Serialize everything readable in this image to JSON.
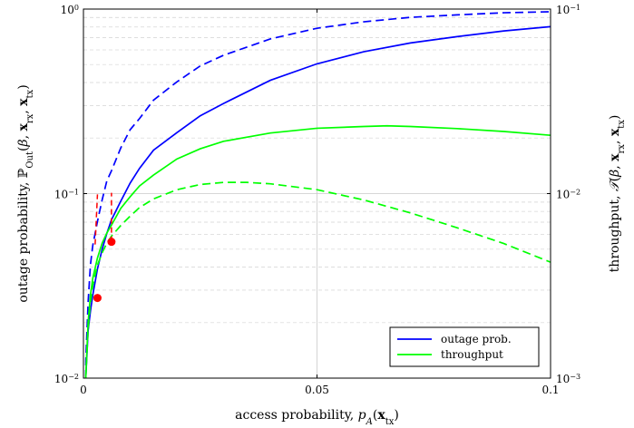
{
  "chart_data": {
    "type": "line",
    "xlabel": "access probability, p_A(x_tx)",
    "ylabel_left": "outage probability, ℙ_Out(β, x_rx, x_tx)",
    "ylabel_right": "throughput, 𝒯(β, x_rx, x_tx)",
    "xlim": [
      0,
      0.1
    ],
    "ylim_left": [
      0.01,
      1
    ],
    "ylim_right": [
      0.001,
      0.1
    ],
    "yscale": "log",
    "x_ticks": [
      {
        "value": 0,
        "label": "0"
      },
      {
        "value": 0.05,
        "label": "0.05"
      },
      {
        "value": 0.1,
        "label": "0.1"
      }
    ],
    "y_ticks_left": [
      {
        "value": 0.01,
        "label": "10",
        "exp": "−2"
      },
      {
        "value": 0.1,
        "label": "10",
        "exp": "−1"
      },
      {
        "value": 1,
        "label": "10",
        "exp": "0"
      }
    ],
    "y_ticks_right": [
      {
        "value": 0.001,
        "label": "10",
        "exp": "−3"
      },
      {
        "value": 0.01,
        "label": "10",
        "exp": "−2"
      },
      {
        "value": 0.1,
        "label": "10",
        "exp": "−1"
      }
    ],
    "grid": "y-minor dashed, x at 0.05",
    "legend": {
      "placement": "bottom-right",
      "entries": [
        {
          "label": "outage prob.",
          "color": "#0000ff"
        },
        {
          "label": "throughput",
          "color": "#00ff00"
        }
      ]
    },
    "series": [
      {
        "axis": "left",
        "color": "#0000ff",
        "dash": "solid",
        "x": [
          0.0005,
          0.001,
          0.0015,
          0.002,
          0.003,
          0.004,
          0.005,
          0.006,
          0.008,
          0.01,
          0.012,
          0.015,
          0.02,
          0.025,
          0.03,
          0.04,
          0.05,
          0.06,
          0.07,
          0.08,
          0.09,
          0.1
        ],
        "y": [
          0.0101,
          0.0181,
          0.0231,
          0.0282,
          0.0391,
          0.0499,
          0.0608,
          0.0721,
          0.0911,
          0.114,
          0.137,
          0.172,
          0.214,
          0.264,
          0.308,
          0.411,
          0.505,
          0.587,
          0.655,
          0.709,
          0.761,
          0.803
        ]
      },
      {
        "axis": "left",
        "color": "#0000ff",
        "dash": "dashed",
        "x": [
          0.0005,
          0.001,
          0.0015,
          0.002,
          0.003,
          0.004,
          0.005,
          0.006,
          0.008,
          0.01,
          0.012,
          0.015,
          0.02,
          0.025,
          0.03,
          0.04,
          0.05,
          0.06,
          0.07,
          0.08,
          0.09,
          0.1
        ],
        "y": [
          0.0124,
          0.0258,
          0.0411,
          0.0524,
          0.0707,
          0.0924,
          0.117,
          0.133,
          0.177,
          0.222,
          0.255,
          0.321,
          0.403,
          0.492,
          0.562,
          0.689,
          0.787,
          0.853,
          0.902,
          0.93,
          0.955,
          0.967
        ]
      },
      {
        "axis": "right",
        "color": "#00ff00",
        "dash": "solid",
        "x": [
          0.0005,
          0.001,
          0.0015,
          0.002,
          0.003,
          0.004,
          0.005,
          0.006,
          0.008,
          0.01,
          0.012,
          0.015,
          0.02,
          0.025,
          0.03,
          0.04,
          0.05,
          0.06,
          0.065,
          0.07,
          0.08,
          0.09,
          0.1
        ],
        "y": [
          0.00102,
          0.00201,
          0.00282,
          0.00348,
          0.00448,
          0.00538,
          0.00611,
          0.00675,
          0.00832,
          0.00962,
          0.011,
          0.0126,
          0.0154,
          0.0175,
          0.0192,
          0.0213,
          0.0226,
          0.0231,
          0.0233,
          0.0231,
          0.0225,
          0.0217,
          0.0207
        ]
      },
      {
        "axis": "right",
        "color": "#00ff00",
        "dash": "dashed",
        "x": [
          0.0005,
          0.001,
          0.0015,
          0.002,
          0.003,
          0.004,
          0.005,
          0.006,
          0.008,
          0.01,
          0.012,
          0.015,
          0.02,
          0.025,
          0.03,
          0.035,
          0.04,
          0.05,
          0.06,
          0.07,
          0.08,
          0.09,
          0.1
        ],
        "y": [
          0.00102,
          0.00184,
          0.00258,
          0.00318,
          0.0041,
          0.00478,
          0.00538,
          0.00588,
          0.00672,
          0.00755,
          0.0084,
          0.00936,
          0.0105,
          0.0112,
          0.0115,
          0.0115,
          0.0113,
          0.0105,
          0.00924,
          0.00786,
          0.00653,
          0.00536,
          0.00425
        ]
      }
    ],
    "markers": [
      {
        "x": 0.003,
        "y": 0.0272,
        "axis": "left",
        "color": "#ff0000"
      },
      {
        "x": 0.006,
        "y": 0.0548,
        "axis": "left",
        "color": "#ff0000"
      }
    ],
    "red_dashed_guides": [
      {
        "x": [
          0.0025,
          0.003
        ],
        "y": [
          0.053,
          0.099
        ],
        "axis": "left"
      },
      {
        "x": [
          0.006,
          0.006
        ],
        "y": [
          0.0548,
          0.101
        ],
        "axis": "left"
      }
    ]
  }
}
